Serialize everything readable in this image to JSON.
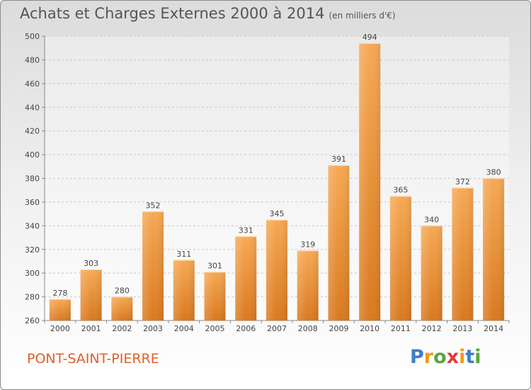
{
  "title": "Achats et Charges Externes 2000 à 2014",
  "subtitle": "(en milliers d'€)",
  "city": "PONT-SAINT-PIERRE",
  "logo": {
    "text": "Proxiti",
    "colors": [
      "#3c7fc4",
      "#f09a1a",
      "#5aa63c",
      "#e03c3c",
      "#f09a1a",
      "#3c7fc4",
      "#5aa63c"
    ]
  },
  "colors": {
    "bar": "#f0a04b",
    "bar_dark": "#d77a1f",
    "city": "#e0602a",
    "grid": "#c8c8c8"
  },
  "chart_data": {
    "type": "bar",
    "title": "Achats et Charges Externes 2000 à 2014",
    "subtitle": "(en milliers d'€)",
    "categories": [
      "2000",
      "2001",
      "2002",
      "2003",
      "2004",
      "2005",
      "2006",
      "2007",
      "2008",
      "2009",
      "2010",
      "2011",
      "2012",
      "2013",
      "2014"
    ],
    "values": [
      278,
      303,
      280,
      352,
      311,
      301,
      331,
      345,
      319,
      391,
      494,
      365,
      340,
      372,
      380
    ],
    "ylim": [
      260,
      500
    ],
    "yticks": [
      260,
      280,
      300,
      320,
      340,
      360,
      380,
      400,
      420,
      440,
      460,
      480,
      500
    ],
    "grid": true,
    "data_labels": true
  }
}
